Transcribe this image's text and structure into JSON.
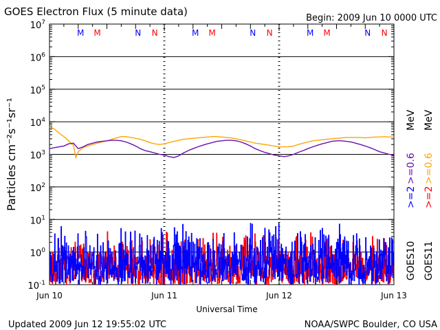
{
  "header": {
    "title": "GOES Electron Flux (5 minute data)",
    "begin": "Begin: 2009 Jun 10 0000 UTC"
  },
  "footer": {
    "updated": "Updated 2009 Jun 12 19:55:02 UTC",
    "credit": "NOAA/SWPC Boulder, CO USA"
  },
  "colors": {
    "goes10_high": "#0000ff",
    "goes10_low": "#ff0000",
    "goes11_high": "#6a0dad",
    "goes11_low": "#ffa500",
    "threshold": "#000000"
  },
  "chart_data": {
    "type": "line",
    "title": "GOES Electron Flux (5 minute data)",
    "xlabel": "Universal Time",
    "ylabel": "Particles cm⁻²s⁻¹sr⁻¹",
    "xlim": [
      "2009-06-10 00:00",
      "2009-06-13 00:00"
    ],
    "x_tick_labels": [
      "Jun 10",
      "Jun 11",
      "Jun 12",
      "Jun 13"
    ],
    "yscale": "log",
    "ylim": [
      0.1,
      10000000
    ],
    "y_tick_labels": [
      {
        "base": "10",
        "exp": "-1"
      },
      {
        "base": "10",
        "exp": "0"
      },
      {
        "base": "10",
        "exp": "1"
      },
      {
        "base": "10",
        "exp": "2"
      },
      {
        "base": "10",
        "exp": "3"
      },
      {
        "base": "10",
        "exp": "4"
      },
      {
        "base": "10",
        "exp": "5"
      },
      {
        "base": "10",
        "exp": "6"
      },
      {
        "base": "10",
        "exp": "7"
      }
    ],
    "grid": "horizontal at each decade",
    "threshold": 1000,
    "noon_midnight_markers": [
      {
        "label": "M",
        "hour": 6.5,
        "color": "#0000ff"
      },
      {
        "label": "M",
        "hour": 10,
        "color": "#ff0000"
      },
      {
        "label": "N",
        "hour": 18.5,
        "color": "#0000ff"
      },
      {
        "label": "N",
        "hour": 22,
        "color": "#ff0000"
      },
      {
        "label": "M",
        "hour": 30.5,
        "color": "#0000ff"
      },
      {
        "label": "M",
        "hour": 34,
        "color": "#ff0000"
      },
      {
        "label": "N",
        "hour": 42.5,
        "color": "#0000ff"
      },
      {
        "label": "N",
        "hour": 46,
        "color": "#ff0000"
      },
      {
        "label": "M",
        "hour": 54.5,
        "color": "#0000ff"
      },
      {
        "label": "M",
        "hour": 58,
        "color": "#ff0000"
      },
      {
        "label": "N",
        "hour": 66.5,
        "color": "#0000ff"
      },
      {
        "label": "N",
        "hour": 70,
        "color": "#ff0000"
      }
    ],
    "legend": {
      "placement": "right, vertical",
      "satellites": [
        "GOES10",
        "GOES11"
      ],
      "energy_labels": [
        {
          "text": ">=2",
          "color": "#0000ff"
        },
        {
          "text": ">=0.6",
          "color": "#6a0dad"
        },
        {
          "text": ">=2",
          "color": "#ff0000"
        },
        {
          "text": ">=0.6",
          "color": "#ffa500"
        }
      ],
      "unit": "MeV"
    },
    "series": [
      {
        "color": "#ffa500",
        "x_hours": [
          0,
          1,
          2,
          3,
          4,
          5,
          5.5,
          6,
          7,
          8,
          9,
          10,
          11,
          12,
          13,
          14,
          15,
          16,
          17,
          18,
          19,
          20,
          21,
          22,
          23,
          24,
          25,
          26,
          27,
          28,
          29,
          30,
          31,
          32,
          33,
          34,
          35,
          36,
          37,
          38,
          39,
          40,
          41,
          42,
          43,
          44,
          45,
          46,
          47,
          48,
          49,
          50,
          51,
          52,
          53,
          54,
          55,
          56,
          57,
          58,
          59,
          60,
          61,
          62,
          63,
          64,
          65,
          66,
          67,
          68,
          69,
          70,
          71,
          72
        ],
        "values": [
          7000,
          6000,
          4500,
          3500,
          2600,
          1900,
          800,
          1200,
          1600,
          1800,
          2000,
          2200,
          2400,
          2600,
          2900,
          3200,
          3500,
          3500,
          3300,
          3100,
          2900,
          2600,
          2300,
          2100,
          2000,
          2100,
          2300,
          2500,
          2700,
          2900,
          3000,
          3100,
          3200,
          3300,
          3400,
          3500,
          3500,
          3400,
          3300,
          3200,
          3000,
          2800,
          2600,
          2400,
          2200,
          2100,
          2000,
          1900,
          1800,
          1700,
          1700,
          1700,
          1800,
          2000,
          2200,
          2400,
          2600,
          2700,
          2800,
          2900,
          3000,
          3100,
          3200,
          3300,
          3300,
          3300,
          3300,
          3200,
          3300,
          3400,
          3400,
          3500,
          3400,
          3400
        ]
      },
      {
        "color": "#6a0dad",
        "x_hours": [
          0,
          1,
          2,
          3,
          4,
          5,
          6,
          7,
          8,
          9,
          10,
          11,
          12,
          13,
          14,
          15,
          16,
          17,
          18,
          19,
          20,
          21,
          22,
          23,
          24,
          25,
          26,
          27,
          28,
          29,
          30,
          31,
          32,
          33,
          34,
          35,
          36,
          37,
          38,
          39,
          40,
          41,
          42,
          43,
          44,
          45,
          46,
          47,
          48,
          49,
          50,
          51,
          52,
          53,
          54,
          55,
          56,
          57,
          58,
          59,
          60,
          61,
          62,
          63,
          64,
          65,
          66,
          67,
          68,
          69,
          70,
          71,
          72
        ],
        "values": [
          1500,
          1600,
          1700,
          1800,
          2100,
          2200,
          1500,
          1700,
          2000,
          2200,
          2400,
          2500,
          2600,
          2700,
          2700,
          2600,
          2400,
          2100,
          1800,
          1500,
          1300,
          1200,
          1100,
          1000,
          950,
          850,
          800,
          900,
          1100,
          1300,
          1500,
          1700,
          1900,
          2100,
          2300,
          2500,
          2600,
          2700,
          2700,
          2600,
          2400,
          2100,
          1800,
          1500,
          1300,
          1150,
          1050,
          950,
          900,
          850,
          900,
          1000,
          1150,
          1300,
          1500,
          1700,
          1900,
          2100,
          2300,
          2500,
          2600,
          2600,
          2500,
          2400,
          2200,
          2000,
          1800,
          1600,
          1400,
          1200,
          1100,
          1000,
          950
        ]
      },
      {
        "color": "#0000ff",
        "description_of_values": "noisy >=2 MeV GOES10 flux, ~0.1 to ~10",
        "range": [
          0.1,
          10
        ],
        "noise_seed": 3
      },
      {
        "color": "#ff0000",
        "description_of_values": "noisy >=2 MeV GOES11 flux, ~0.1 to ~5",
        "range": [
          0.1,
          5
        ],
        "noise_seed": 11
      }
    ]
  }
}
